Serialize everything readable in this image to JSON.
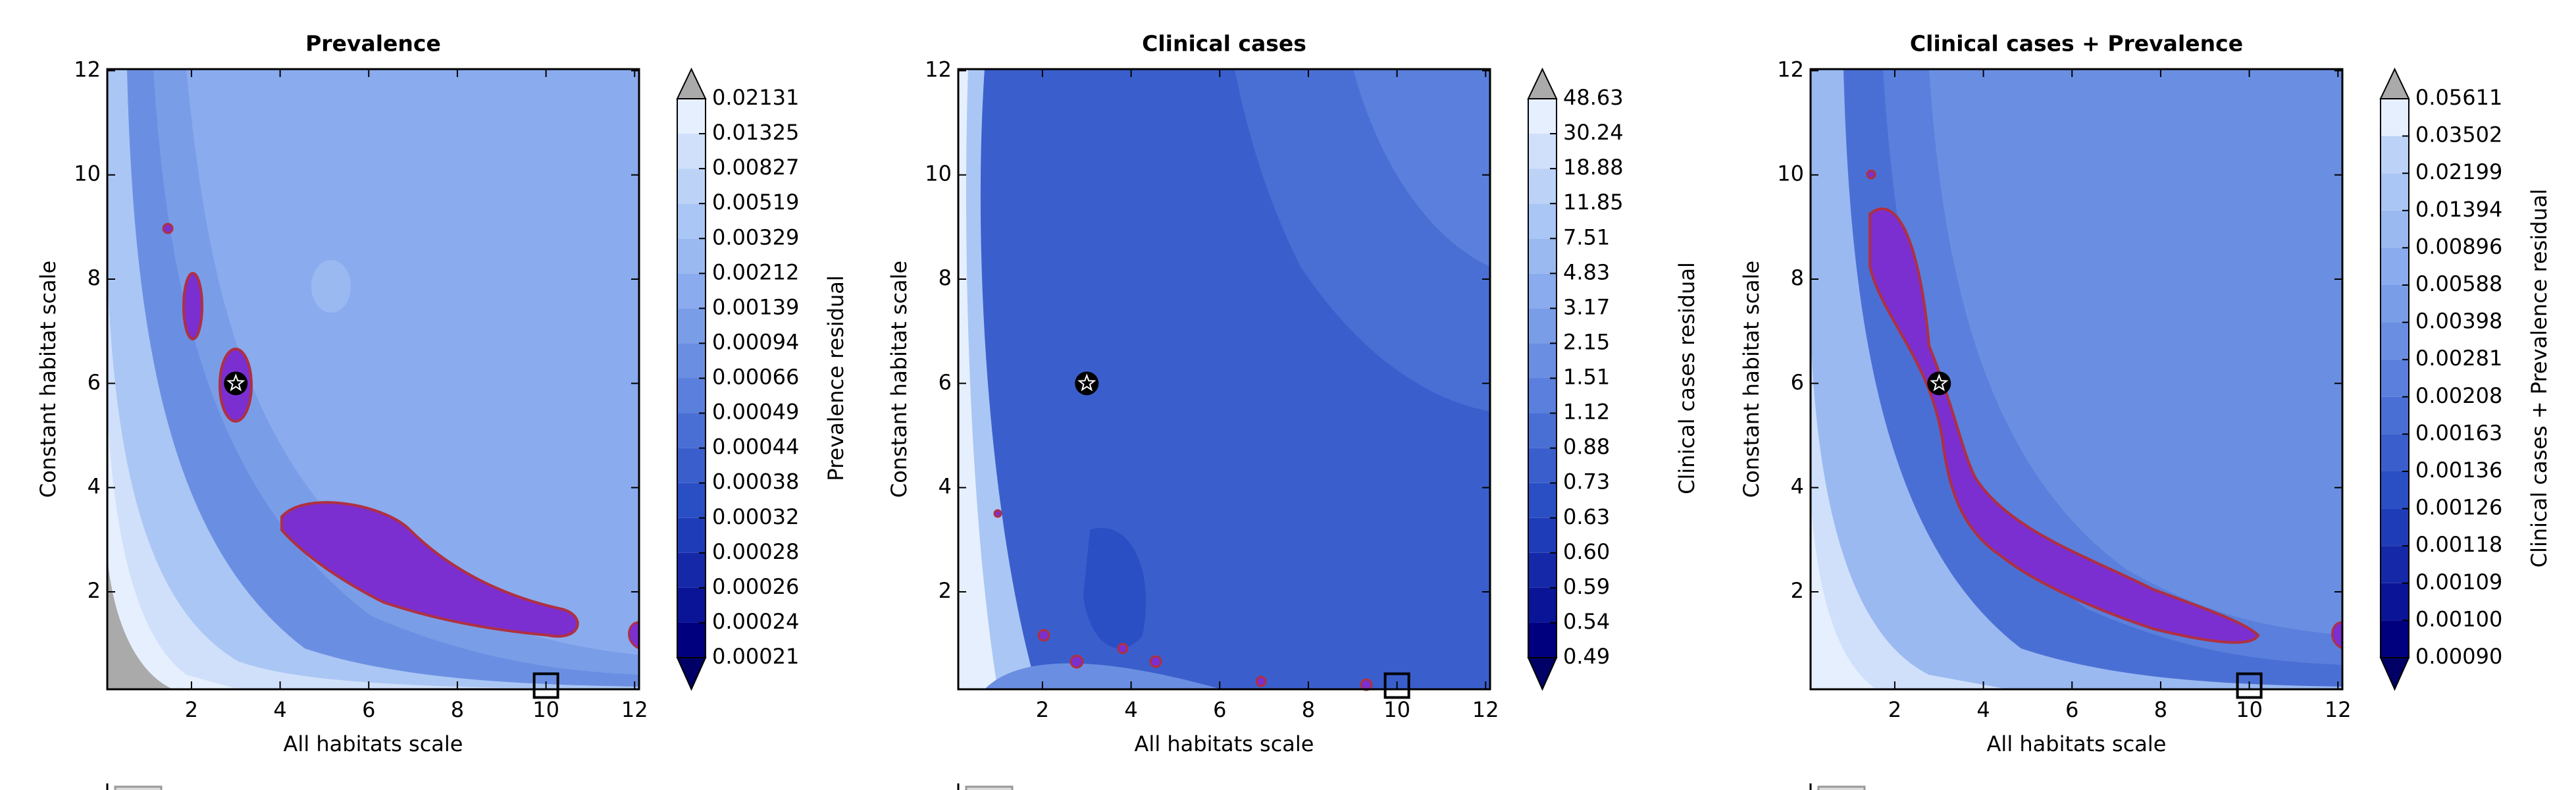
{
  "chart_data": [
    {
      "type": "contour",
      "title": "Prevalence",
      "xlabel": "All habitats scale",
      "ylabel": "Constant habitat scale",
      "xlim": [
        0.1,
        12.1
      ],
      "ylim": [
        0.13,
        12.03
      ],
      "xticks": [
        2,
        4,
        6,
        8,
        10,
        12
      ],
      "yticks": [
        2,
        4,
        6,
        8,
        10,
        12
      ],
      "colorbar_label": "Prevalence residual",
      "colorbar_ticks": [
        0.00021,
        0.00024,
        0.00026,
        0.00028,
        0.00032,
        0.00038,
        0.00044,
        0.00049,
        0.00066,
        0.00094,
        0.00139,
        0.00212,
        0.00329,
        0.00519,
        0.00827,
        0.01325,
        0.02131
      ],
      "colors": [
        "#00007f",
        "#0a1496",
        "#1428a8",
        "#1f3cb8",
        "#2a4fc4",
        "#3a5fcc",
        "#4a6fd4",
        "#5a7fdc",
        "#6a8fe2",
        "#7a9de8",
        "#8aabed",
        "#9ab9f1",
        "#aac6f4",
        "#bcd3f7",
        "#d0e0fa",
        "#e6effd"
      ],
      "over_color": "#aaaaaa",
      "under_color": "#000066",
      "optimum": {
        "x": 3,
        "y": 6
      },
      "reference": {
        "x": 10,
        "y": 0.2
      }
    },
    {
      "type": "contour",
      "title": "Clinical cases",
      "xlabel": "All habitats scale",
      "ylabel": "Constant habitat scale",
      "xlim": [
        0.1,
        12.1
      ],
      "ylim": [
        0.13,
        12.03
      ],
      "xticks": [
        2,
        4,
        6,
        8,
        10,
        12
      ],
      "yticks": [
        2,
        4,
        6,
        8,
        10,
        12
      ],
      "colorbar_label": "Clinical cases residual",
      "colorbar_ticks": [
        0.49,
        0.54,
        0.59,
        {
          "value": 0.6,
          "label": "0.60"
        },
        0.63,
        0.73,
        0.88,
        1.12,
        1.51,
        2.15,
        3.17,
        4.83,
        7.51,
        11.85,
        18.88,
        30.24,
        48.63
      ],
      "colors": [
        "#00007f",
        "#0a1496",
        "#1428a8",
        "#1f3cb8",
        "#2a4fc4",
        "#3a5fcc",
        "#4a6fd4",
        "#5a7fdc",
        "#6a8fe2",
        "#7a9de8",
        "#8aabed",
        "#9ab9f1",
        "#aac6f4",
        "#bcd3f7",
        "#d0e0fa",
        "#e6effd"
      ],
      "over_color": "#aaaaaa",
      "under_color": "#000066",
      "optimum": {
        "x": 3,
        "y": 6
      },
      "reference": {
        "x": 10,
        "y": 0.2
      }
    },
    {
      "type": "contour",
      "title": "Clinical cases + Prevalence",
      "xlabel": "All habitats scale",
      "ylabel": "Constant habitat scale",
      "xlim": [
        0.1,
        12.1
      ],
      "ylim": [
        0.13,
        12.03
      ],
      "xticks": [
        2,
        4,
        6,
        8,
        10,
        12
      ],
      "yticks": [
        2,
        4,
        6,
        8,
        10,
        12
      ],
      "colorbar_label": "Clinical cases + Prevalence residual",
      "colorbar_ticks": [
        {
          "value": 0.0009,
          "label": "0.00090"
        },
        {
          "value": 0.001,
          "label": "0.00100"
        },
        0.00109,
        0.00118,
        0.00126,
        0.00136,
        0.00163,
        0.00208,
        0.00281,
        0.00398,
        0.00588,
        0.00896,
        0.01394,
        0.02199,
        0.03502,
        0.05611
      ],
      "colors": [
        "#00007f",
        "#0a1496",
        "#1428a8",
        "#1f3cb8",
        "#2a4fc4",
        "#3a5fcc",
        "#4a6fd4",
        "#5a7fdc",
        "#6a8fe2",
        "#7a9de8",
        "#8aabed",
        "#9ab9f1",
        "#aac6f4",
        "#bcd3f7",
        "#e6effd"
      ],
      "over_color": "#aaaaaa",
      "under_color": "#000066",
      "optimum": {
        "x": 3,
        "y": 6
      },
      "reference": {
        "x": 10,
        "y": 0.2
      }
    }
  ]
}
